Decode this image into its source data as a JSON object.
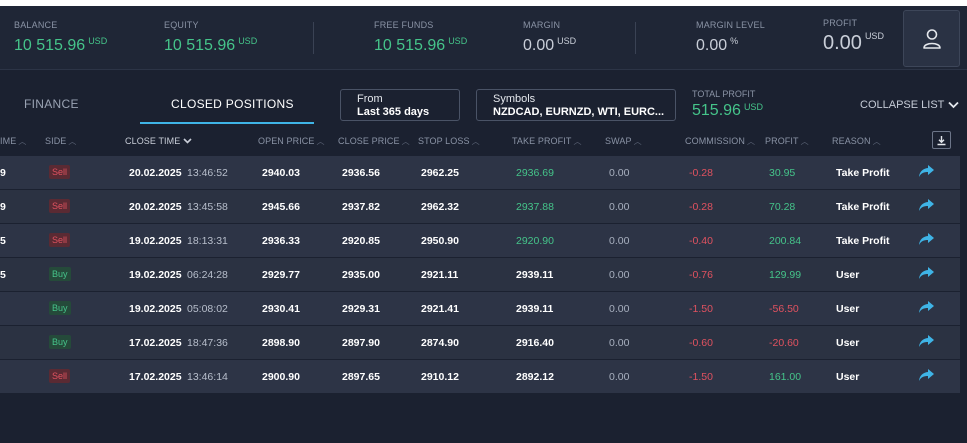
{
  "stats": {
    "balance": {
      "label": "BALANCE",
      "value": "10 515.96",
      "unit": "USD"
    },
    "equity": {
      "label": "EQUITY",
      "value": "10 515.96",
      "unit": "USD"
    },
    "free_funds": {
      "label": "FREE FUNDS",
      "value": "10 515.96",
      "unit": "USD"
    },
    "margin": {
      "label": "MARGIN",
      "value": "0.00",
      "unit": "USD"
    },
    "margin_level": {
      "label": "MARGIN LEVEL",
      "value": "0.00",
      "unit": "%"
    },
    "profit": {
      "label": "PROFIT",
      "value": "0.00",
      "unit": "USD"
    }
  },
  "user_icon": "user-icon",
  "tabs": {
    "finance": "FINANCE",
    "closed_positions": "CLOSED POSITIONS"
  },
  "filters": {
    "from_label": "From",
    "from_value": "Last 365 days",
    "symbols_label": "Symbols",
    "symbols_value": "NZDCAD, EURNZD, WTI, EURC..."
  },
  "total_profit": {
    "label": "TOTAL PROFIT",
    "value": "515.96",
    "unit": "USD"
  },
  "collapse_label": "COLLAPSE LIST",
  "columns": [
    "IME",
    "SIDE",
    "CLOSE TIME",
    "OPEN PRICE",
    "CLOSE PRICE",
    "STOP LOSS",
    "TAKE PROFIT",
    "SWAP",
    "COMMISSION",
    "PROFIT",
    "REASON"
  ],
  "rows": [
    {
      "id": "9",
      "side": "Sell",
      "date": "20.02.2025",
      "time": "13:46:52",
      "open": "2940.03",
      "close": "2936.56",
      "sl": "2962.25",
      "tp": "2936.69",
      "tp_hit": true,
      "swap": "0.00",
      "commission": "-0.28",
      "profit": "30.95",
      "profit_sign": "pos",
      "reason": "Take Profit"
    },
    {
      "id": "9",
      "side": "Sell",
      "date": "20.02.2025",
      "time": "13:45:58",
      "open": "2945.66",
      "close": "2937.82",
      "sl": "2962.32",
      "tp": "2937.88",
      "tp_hit": true,
      "swap": "0.00",
      "commission": "-0.28",
      "profit": "70.28",
      "profit_sign": "pos",
      "reason": "Take Profit"
    },
    {
      "id": "5",
      "side": "Sell",
      "date": "19.02.2025",
      "time": "18:13:31",
      "open": "2936.33",
      "close": "2920.85",
      "sl": "2950.90",
      "tp": "2920.90",
      "tp_hit": true,
      "swap": "0.00",
      "commission": "-0.40",
      "profit": "200.84",
      "profit_sign": "pos",
      "reason": "Take Profit"
    },
    {
      "id": "5",
      "side": "Buy",
      "date": "19.02.2025",
      "time": "06:24:28",
      "open": "2929.77",
      "close": "2935.00",
      "sl": "2921.11",
      "tp": "2939.11",
      "tp_hit": false,
      "swap": "0.00",
      "commission": "-0.76",
      "profit": "129.99",
      "profit_sign": "pos",
      "reason": "User"
    },
    {
      "id": "",
      "side": "Buy",
      "date": "19.02.2025",
      "time": "05:08:02",
      "open": "2930.41",
      "close": "2929.31",
      "sl": "2921.41",
      "tp": "2939.11",
      "tp_hit": false,
      "swap": "0.00",
      "commission": "-1.50",
      "profit": "-56.50",
      "profit_sign": "neg",
      "reason": "User"
    },
    {
      "id": "",
      "side": "Buy",
      "date": "17.02.2025",
      "time": "18:47:36",
      "open": "2898.90",
      "close": "2897.90",
      "sl": "2874.90",
      "tp": "2916.40",
      "tp_hit": false,
      "swap": "0.00",
      "commission": "-0.60",
      "profit": "-20.60",
      "profit_sign": "neg",
      "reason": "User"
    },
    {
      "id": "",
      "side": "Sell",
      "date": "17.02.2025",
      "time": "13:46:14",
      "open": "2900.90",
      "close": "2897.65",
      "sl": "2910.12",
      "tp": "2892.12",
      "tp_hit": false,
      "swap": "0.00",
      "commission": "-1.50",
      "profit": "161.00",
      "profit_sign": "pos",
      "reason": "User"
    }
  ],
  "colors": {
    "green": "#45c48a",
    "red": "#e05260",
    "accent": "#3fb4e6",
    "background": "#1b2130"
  }
}
